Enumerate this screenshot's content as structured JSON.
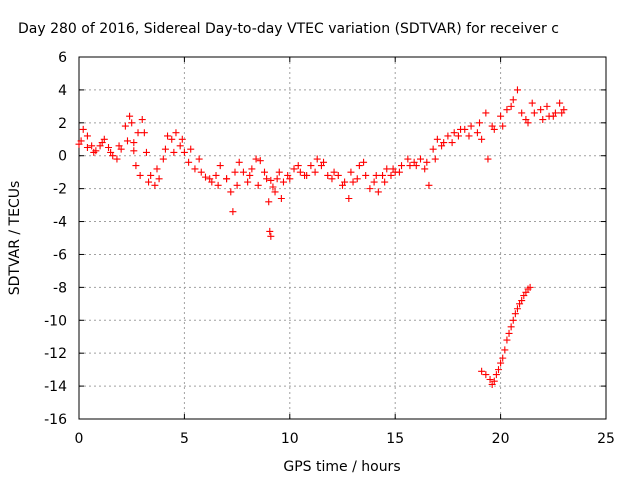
{
  "chart_data": {
    "type": "scatter",
    "title": "Day 280 of 2016, Sidereal Day-to-day VTEC variation (SDTVAR) for receiver c",
    "xlabel": "GPS time / hours",
    "ylabel": "SDTVAR / TECUs",
    "xlim": [
      0,
      25
    ],
    "ylim": [
      -16,
      6
    ],
    "xticks": [
      0,
      5,
      10,
      15,
      20,
      25
    ],
    "yticks": [
      -16,
      -14,
      -12,
      -10,
      -8,
      -6,
      -4,
      -2,
      0,
      2,
      4,
      6
    ],
    "grid": true,
    "legend": "none",
    "marker": "plus",
    "colors": {
      "series": "#ff0000",
      "axes": "#000000",
      "grid": "#a0a0a0"
    },
    "series": [
      {
        "values": [
          [
            0.0,
            0.7
          ],
          [
            0.2,
            1.6
          ],
          [
            0.4,
            1.2
          ],
          [
            0.6,
            0.6
          ],
          [
            0.8,
            0.3
          ],
          [
            1.0,
            0.6
          ],
          [
            1.2,
            1.0
          ],
          [
            1.4,
            0.5
          ],
          [
            1.6,
            0.0
          ],
          [
            1.8,
            -0.2
          ],
          [
            2.0,
            0.4
          ],
          [
            2.2,
            1.8
          ],
          [
            2.4,
            2.4
          ],
          [
            2.5,
            2.0
          ],
          [
            2.6,
            0.8
          ],
          [
            2.7,
            -0.6
          ],
          [
            2.8,
            1.4
          ],
          [
            3.0,
            2.2
          ],
          [
            3.1,
            1.4
          ],
          [
            3.2,
            0.2
          ],
          [
            3.4,
            -1.2
          ],
          [
            3.6,
            -1.8
          ],
          [
            3.8,
            -1.4
          ],
          [
            4.0,
            -0.2
          ],
          [
            4.2,
            1.2
          ],
          [
            4.4,
            1.0
          ],
          [
            4.6,
            1.4
          ],
          [
            4.8,
            0.6
          ],
          [
            5.0,
            0.2
          ],
          [
            5.2,
            -0.4
          ],
          [
            5.5,
            -0.8
          ],
          [
            5.8,
            -1.0
          ],
          [
            6.0,
            -1.3
          ],
          [
            6.3,
            -1.6
          ],
          [
            6.5,
            -1.2
          ],
          [
            6.7,
            -0.6
          ],
          [
            7.0,
            -1.4
          ],
          [
            7.2,
            -2.2
          ],
          [
            7.4,
            -1.0
          ],
          [
            7.6,
            -0.4
          ],
          [
            7.8,
            -1.0
          ],
          [
            8.0,
            -1.6
          ],
          [
            8.2,
            -0.8
          ],
          [
            8.4,
            -0.2
          ],
          [
            8.6,
            -0.3
          ],
          [
            8.8,
            -1.0
          ],
          [
            9.0,
            -2.8
          ],
          [
            9.1,
            -1.5
          ],
          [
            9.3,
            -2.2
          ],
          [
            9.5,
            -1.0
          ],
          [
            9.7,
            -1.6
          ],
          [
            9.9,
            -1.2
          ],
          [
            10.2,
            -0.8
          ],
          [
            10.5,
            -1.0
          ],
          [
            10.8,
            -1.2
          ],
          [
            11.0,
            -0.6
          ],
          [
            11.3,
            -0.2
          ],
          [
            11.5,
            -0.6
          ],
          [
            11.8,
            -1.2
          ],
          [
            12.0,
            -1.4
          ],
          [
            12.3,
            -1.2
          ],
          [
            12.6,
            -1.6
          ],
          [
            12.8,
            -2.6
          ],
          [
            13.0,
            -1.6
          ],
          [
            13.3,
            -0.6
          ],
          [
            13.6,
            -1.2
          ],
          [
            14.0,
            -1.6
          ],
          [
            14.2,
            -2.2
          ],
          [
            14.4,
            -1.2
          ],
          [
            14.6,
            -0.8
          ],
          [
            14.8,
            -1.2
          ],
          [
            15.0,
            -1.0
          ],
          [
            15.3,
            -0.6
          ],
          [
            15.6,
            -0.2
          ],
          [
            15.9,
            -0.4
          ],
          [
            16.2,
            -0.2
          ],
          [
            16.5,
            -0.4
          ],
          [
            16.8,
            0.4
          ],
          [
            17.0,
            1.0
          ],
          [
            17.2,
            0.6
          ],
          [
            17.5,
            1.2
          ],
          [
            17.8,
            1.4
          ],
          [
            18.0,
            1.2
          ],
          [
            18.3,
            1.6
          ],
          [
            18.6,
            1.8
          ],
          [
            19.0,
            2.0
          ],
          [
            19.3,
            2.6
          ],
          [
            19.6,
            1.8
          ],
          [
            20.0,
            2.4
          ],
          [
            20.3,
            2.8
          ],
          [
            20.6,
            3.4
          ],
          [
            21.0,
            2.6
          ],
          [
            21.3,
            2.0
          ],
          [
            21.6,
            2.6
          ],
          [
            22.0,
            2.2
          ],
          [
            22.3,
            2.4
          ],
          [
            22.6,
            2.6
          ],
          [
            23.0,
            2.8
          ]
        ]
      },
      {
        "values": [
          [
            0.1,
            0.9
          ],
          [
            0.4,
            0.5
          ],
          [
            0.7,
            0.2
          ],
          [
            1.1,
            0.8
          ],
          [
            1.5,
            0.2
          ],
          [
            1.9,
            0.6
          ],
          [
            2.3,
            0.9
          ],
          [
            2.6,
            0.3
          ],
          [
            2.9,
            -1.2
          ],
          [
            3.3,
            -1.6
          ],
          [
            3.7,
            -0.8
          ],
          [
            4.1,
            0.4
          ],
          [
            4.5,
            0.2
          ],
          [
            4.9,
            1.0
          ],
          [
            5.3,
            0.4
          ],
          [
            5.7,
            -0.2
          ],
          [
            6.2,
            -1.4
          ],
          [
            6.6,
            -1.8
          ],
          [
            7.0,
            -1.4
          ],
          [
            7.3,
            -3.4
          ],
          [
            7.5,
            -1.8
          ],
          [
            8.1,
            -1.2
          ],
          [
            8.5,
            -1.8
          ],
          [
            8.9,
            -1.4
          ],
          [
            9.05,
            -4.6
          ],
          [
            9.1,
            -4.9
          ],
          [
            9.2,
            -1.9
          ],
          [
            9.4,
            -1.4
          ],
          [
            9.6,
            -2.6
          ],
          [
            10.0,
            -1.4
          ],
          [
            10.4,
            -0.6
          ],
          [
            10.7,
            -1.2
          ],
          [
            11.2,
            -1.0
          ],
          [
            11.6,
            -0.4
          ],
          [
            12.1,
            -1.0
          ],
          [
            12.5,
            -1.8
          ],
          [
            12.9,
            -1.0
          ],
          [
            13.2,
            -1.4
          ],
          [
            13.5,
            -0.4
          ],
          [
            13.8,
            -2.0
          ],
          [
            14.1,
            -1.2
          ],
          [
            14.5,
            -1.6
          ],
          [
            14.9,
            -0.8
          ],
          [
            15.2,
            -1.0
          ],
          [
            15.7,
            -0.6
          ],
          [
            16.0,
            -0.6
          ],
          [
            16.4,
            -0.8
          ],
          [
            16.6,
            -1.8
          ],
          [
            16.9,
            -0.2
          ],
          [
            17.3,
            0.8
          ],
          [
            17.7,
            0.8
          ],
          [
            18.1,
            1.6
          ],
          [
            18.5,
            1.2
          ],
          [
            18.9,
            1.4
          ],
          [
            19.1,
            1.0
          ],
          [
            19.4,
            -0.2
          ],
          [
            19.7,
            1.6
          ],
          [
            20.1,
            1.8
          ],
          [
            20.5,
            3.0
          ],
          [
            20.8,
            4.0
          ],
          [
            21.2,
            2.2
          ],
          [
            21.5,
            3.2
          ],
          [
            21.9,
            2.8
          ],
          [
            22.2,
            3.0
          ],
          [
            22.5,
            2.4
          ],
          [
            22.8,
            3.2
          ],
          [
            22.9,
            2.6
          ]
        ]
      },
      {
        "values": [
          [
            19.1,
            -13.1
          ],
          [
            19.3,
            -13.3
          ],
          [
            19.5,
            -13.6
          ],
          [
            19.6,
            -13.9
          ],
          [
            19.7,
            -13.7
          ],
          [
            19.8,
            -13.3
          ],
          [
            19.9,
            -13.0
          ],
          [
            20.0,
            -12.6
          ],
          [
            20.1,
            -12.3
          ],
          [
            20.2,
            -11.8
          ],
          [
            20.3,
            -11.2
          ],
          [
            20.4,
            -10.8
          ],
          [
            20.5,
            -10.4
          ],
          [
            20.6,
            -10.0
          ],
          [
            20.7,
            -9.6
          ],
          [
            20.8,
            -9.3
          ],
          [
            20.9,
            -9.0
          ],
          [
            21.0,
            -8.8
          ],
          [
            21.1,
            -8.5
          ],
          [
            21.2,
            -8.3
          ],
          [
            21.3,
            -8.1
          ],
          [
            21.4,
            -8.0
          ]
        ]
      }
    ]
  }
}
